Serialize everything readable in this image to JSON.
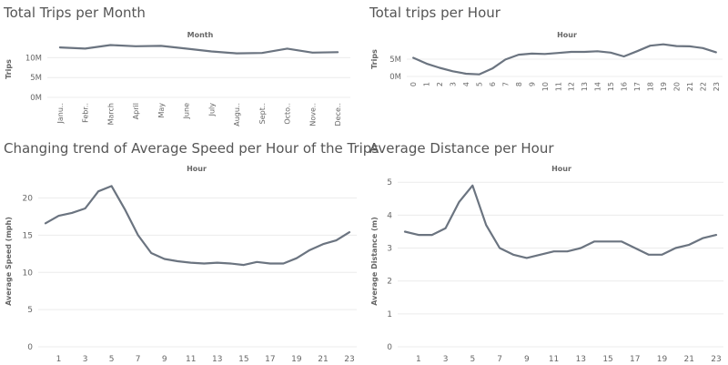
{
  "colors": {
    "line": "#6b7480",
    "grid": "#ececec",
    "text": "#666666"
  },
  "chart_data": [
    {
      "id": "trips_month",
      "type": "line",
      "title": "Total Trips per Month",
      "header": "Month",
      "xlabel": "",
      "ylabel": "Trips",
      "ylim": [
        0,
        14
      ],
      "y_ticks": [
        0,
        5,
        10
      ],
      "y_tick_labels": [
        "0M",
        "5M",
        "10M"
      ],
      "categories": [
        "Janu..",
        "Febr..",
        "March",
        "April",
        "May",
        "June",
        "July",
        "Augu..",
        "Sept..",
        "Octo..",
        "Nove..",
        "Dece.."
      ],
      "series": [
        {
          "values": [
            12.6,
            12.3,
            13.2,
            12.9,
            13.0,
            12.3,
            11.6,
            11.1,
            11.2,
            12.3,
            11.3,
            11.4
          ]
        }
      ],
      "grid": true
    },
    {
      "id": "trips_hour",
      "type": "line",
      "title": "Total trips per Hour",
      "header": "Hour",
      "xlabel": "",
      "ylabel": "Trips",
      "ylim": [
        0,
        10
      ],
      "y_ticks": [
        0,
        5
      ],
      "y_tick_labels": [
        "0M",
        "5M"
      ],
      "categories": [
        "0",
        "1",
        "2",
        "3",
        "4",
        "5",
        "6",
        "7",
        "8",
        "9",
        "10",
        "11",
        "12",
        "13",
        "14",
        "15",
        "16",
        "17",
        "18",
        "19",
        "20",
        "21",
        "22",
        "23"
      ],
      "series": [
        {
          "values": [
            5.4,
            3.7,
            2.5,
            1.5,
            0.8,
            0.6,
            2.3,
            4.9,
            6.3,
            6.6,
            6.5,
            6.8,
            7.1,
            7.1,
            7.3,
            6.9,
            5.8,
            7.3,
            8.9,
            9.3,
            8.8,
            8.7,
            8.2,
            7.0
          ]
        }
      ],
      "grid": true
    },
    {
      "id": "speed_hour",
      "type": "line",
      "title": "Changing trend of Average Speed per Hour of the Trips",
      "header": "Hour",
      "xlabel": "",
      "ylabel": "Average Speed (mph)",
      "ylim": [
        0,
        23
      ],
      "y_ticks": [
        0,
        5,
        10,
        15,
        20
      ],
      "x_range": [
        0,
        23
      ],
      "x_ticks": [
        1,
        3,
        5,
        7,
        9,
        11,
        13,
        15,
        17,
        19,
        21,
        23
      ],
      "x": [
        0,
        1,
        2,
        3,
        4,
        5,
        6,
        7,
        8,
        9,
        10,
        11,
        12,
        13,
        14,
        15,
        16,
        17,
        18,
        19,
        20,
        21,
        22,
        23
      ],
      "series": [
        {
          "values": [
            16.6,
            17.6,
            18.0,
            18.6,
            20.9,
            21.6,
            18.5,
            15.0,
            12.6,
            11.8,
            11.5,
            11.3,
            11.2,
            11.3,
            11.2,
            11.0,
            11.4,
            11.2,
            11.2,
            11.9,
            13.0,
            13.8,
            14.3,
            15.4
          ]
        }
      ],
      "grid": true
    },
    {
      "id": "distance_hour",
      "type": "line",
      "title": "Average Distance per Hour",
      "header": "Hour",
      "xlabel": "",
      "ylabel": "Average Distance (m)",
      "ylim": [
        0,
        5.2
      ],
      "y_ticks": [
        0,
        1,
        2,
        3,
        4,
        5
      ],
      "x_range": [
        0,
        23
      ],
      "x_ticks": [
        1,
        3,
        5,
        7,
        9,
        11,
        13,
        15,
        17,
        19,
        21,
        23
      ],
      "x": [
        0,
        1,
        2,
        3,
        4,
        5,
        6,
        7,
        8,
        9,
        10,
        11,
        12,
        13,
        14,
        15,
        16,
        17,
        18,
        19,
        20,
        21,
        22,
        23
      ],
      "series": [
        {
          "values": [
            3.5,
            3.4,
            3.4,
            3.6,
            4.4,
            4.9,
            3.7,
            3.0,
            2.8,
            2.7,
            2.8,
            2.9,
            2.9,
            3.0,
            3.2,
            3.2,
            3.2,
            3.0,
            2.8,
            2.8,
            3.0,
            3.1,
            3.3,
            3.4
          ]
        }
      ],
      "grid": true
    }
  ]
}
